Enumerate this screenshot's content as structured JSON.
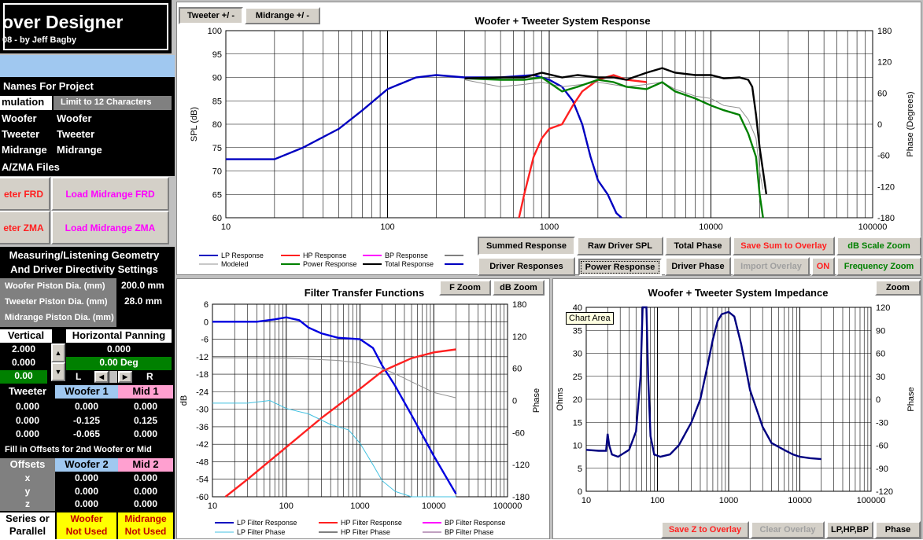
{
  "app": {
    "title": "over Designer",
    "subtitle": "08 - by Jeff Bagby"
  },
  "names": {
    "header": "Names For Project",
    "simulation_label": "mulation",
    "limit_note": "Limit to 12 Characters",
    "rows": [
      {
        "label": "Woofer",
        "value": "Woofer"
      },
      {
        "label": "Tweeter",
        "value": "Tweeter"
      },
      {
        "label": "Midrange",
        "value": "Midrange"
      }
    ]
  },
  "files": {
    "header": "A/ZMA Files",
    "tweeter_frd": "eter FRD",
    "midrange_frd": "Load Midrange FRD",
    "tweeter_zma": "eter ZMA",
    "midrange_zma": "Load Midrange ZMA"
  },
  "geometry": {
    "header1": "Measuring/Listening Geometry",
    "header2": "And Driver Directivity Settings",
    "rows": [
      {
        "label": "Woofer Piston Dia. (mm)",
        "value": "200.0 mm"
      },
      {
        "label": "Tweeter Piston Dia. (mm)",
        "value": "28.0 mm"
      },
      {
        "label": "Midrange Piston Dia. (mm)",
        "value": ""
      }
    ]
  },
  "panning": {
    "vertical_label": "Vertical",
    "horizontal_label": "Horizontal Panning",
    "vertical_values": [
      "2.000",
      "0.000",
      "0.00"
    ],
    "horizontal_value": "0.000",
    "deg_value": "0.00 Deg",
    "l": "L",
    "r": "R"
  },
  "offsets1": {
    "headers": [
      "Tweeter",
      "Woofer 1",
      "Mid 1"
    ],
    "rows": [
      [
        "0.000",
        "0.000",
        "0.000"
      ],
      [
        "0.000",
        "-0.125",
        "0.125"
      ],
      [
        "0.000",
        "-0.065",
        "0.000"
      ]
    ]
  },
  "offsets2": {
    "note": "Fill in Offsets for 2nd Woofer or Mid",
    "headers": [
      "Offsets",
      "Woofer 2",
      "Mid 2"
    ],
    "rows": [
      {
        "axis": "x",
        "w": "0.000",
        "m": "0.000"
      },
      {
        "axis": "y",
        "w": "0.000",
        "m": "0.000"
      },
      {
        "axis": "z",
        "w": "0.000",
        "m": "0.000"
      }
    ]
  },
  "series": {
    "label1": "Series or",
    "label2": "Parallel",
    "woofer1": "Woofer",
    "woofer2": "Not Used",
    "mid1": "Midrange",
    "mid2": "Not Used"
  },
  "tabs": {
    "tweeter": "Tweeter +/ -",
    "midrange": "Midrange   +/ -"
  },
  "buttons": {
    "summed": "Summed Response",
    "raw": "Raw Driver SPL",
    "total_phase": "Total Phase",
    "save_sum": "Save Sum to Overlay",
    "db_scale": "dB Scale Zoom",
    "driver_resp": "Driver Responses",
    "power_resp": "Power Response",
    "driver_phase": "Driver Phase",
    "import_overlay": "Import Overlay",
    "on": "ON",
    "freq_zoom": "Frequency Zoom",
    "f_zoom": "F Zoom",
    "db_zoom": "dB Zoom",
    "zoom": "Zoom",
    "save_z": "Save Z to Overlay",
    "clear_overlay": "Clear Overlay",
    "lphpbp": "LP,HP,BP",
    "phase": "Phase"
  },
  "tooltip": "Chart Area",
  "colors": {
    "lp": "#0000c0",
    "hp": "#ff2020",
    "bp": "#ff00ff",
    "power": "#008000",
    "total": "#000000",
    "modeled": "#909090",
    "lpphase": "#40c0e0",
    "imp": "#000080"
  },
  "chart_data": [
    {
      "type": "line",
      "title": "Woofer + Tweeter    System Response",
      "xlabel": "",
      "ylabel": "SPL (dB)",
      "y2label": "Phase (Degrees)",
      "xscale": "log",
      "xlim": [
        10,
        100000
      ],
      "ylim": [
        60,
        100
      ],
      "y2lim": [
        -180,
        180
      ],
      "xticks": [
        "10",
        "100",
        "1000",
        "10000",
        "100000"
      ],
      "yticks": [
        "60",
        "65",
        "70",
        "75",
        "80",
        "85",
        "90",
        "95",
        "100"
      ],
      "y2ticks": [
        "-180",
        "-120",
        "-60",
        "0",
        "60",
        "120",
        "180"
      ],
      "legend": [
        "LP Response",
        "HP Response",
        "BP Response",
        "",
        "Modeled",
        "Power Response",
        "Total Response",
        ""
      ],
      "series": [
        {
          "name": "LP Response",
          "color": "#0000c0",
          "points": [
            [
              10,
              72.5
            ],
            [
              20,
              72.5
            ],
            [
              30,
              75
            ],
            [
              50,
              79
            ],
            [
              70,
              83
            ],
            [
              100,
              87.5
            ],
            [
              150,
              90
            ],
            [
              200,
              90.5
            ],
            [
              300,
              90
            ],
            [
              500,
              90
            ],
            [
              800,
              90.5
            ],
            [
              1000,
              89.5
            ],
            [
              1200,
              88
            ],
            [
              1400,
              85
            ],
            [
              1600,
              80
            ],
            [
              1800,
              73
            ],
            [
              2000,
              68
            ],
            [
              2300,
              65
            ],
            [
              2600,
              61
            ],
            [
              2800,
              60
            ]
          ]
        },
        {
          "name": "HP Response",
          "color": "#ff2020",
          "points": [
            [
              650,
              60
            ],
            [
              700,
              65
            ],
            [
              800,
              73
            ],
            [
              900,
              77
            ],
            [
              1000,
              79
            ],
            [
              1200,
              80
            ],
            [
              1400,
              84
            ],
            [
              1600,
              87
            ],
            [
              2000,
              89.5
            ],
            [
              2500,
              90.5
            ],
            [
              3000,
              89.5
            ],
            [
              4000,
              89
            ]
          ]
        },
        {
          "name": "Modeled",
          "color": "#909090",
          "points": [
            [
              300,
              89.5
            ],
            [
              500,
              88
            ],
            [
              700,
              88.5
            ],
            [
              900,
              89
            ],
            [
              1200,
              88
            ],
            [
              1600,
              88.5
            ],
            [
              2000,
              89
            ],
            [
              3000,
              88
            ],
            [
              4000,
              88.5
            ],
            [
              5000,
              89
            ],
            [
              6000,
              87.5
            ],
            [
              8000,
              86
            ],
            [
              10000,
              85.5
            ],
            [
              12000,
              84
            ],
            [
              15000,
              83.5
            ],
            [
              17000,
              81
            ],
            [
              19000,
              77
            ],
            [
              20000,
              70
            ],
            [
              21000,
              66
            ]
          ]
        },
        {
          "name": "Power Response",
          "color": "#008000",
          "points": [
            [
              300,
              89.8
            ],
            [
              500,
              89.5
            ],
            [
              700,
              89.5
            ],
            [
              900,
              90
            ],
            [
              1200,
              87
            ],
            [
              1500,
              88
            ],
            [
              2000,
              89.5
            ],
            [
              2500,
              89
            ],
            [
              3000,
              88
            ],
            [
              4000,
              87.5
            ],
            [
              5000,
              89
            ],
            [
              6000,
              87
            ],
            [
              8000,
              85.5
            ],
            [
              10000,
              84
            ],
            [
              12000,
              83
            ],
            [
              15000,
              82
            ],
            [
              17000,
              78
            ],
            [
              19000,
              73
            ],
            [
              20000,
              65
            ],
            [
              21000,
              60
            ]
          ]
        },
        {
          "name": "Total Response",
          "color": "#000000",
          "points": [
            [
              300,
              89.8
            ],
            [
              500,
              90
            ],
            [
              700,
              90
            ],
            [
              900,
              91
            ],
            [
              1200,
              90
            ],
            [
              1500,
              90.5
            ],
            [
              2000,
              90
            ],
            [
              2500,
              90
            ],
            [
              3000,
              89.5
            ],
            [
              4000,
              91
            ],
            [
              5000,
              92
            ],
            [
              6000,
              91
            ],
            [
              8000,
              90.5
            ],
            [
              10000,
              90.5
            ],
            [
              12000,
              89.8
            ],
            [
              15000,
              90
            ],
            [
              17000,
              89.5
            ],
            [
              18000,
              88
            ],
            [
              19000,
              82
            ],
            [
              20000,
              75
            ],
            [
              21000,
              70
            ],
            [
              22000,
              65
            ]
          ]
        }
      ]
    },
    {
      "type": "line",
      "title": "Filter Transfer Functions",
      "xlabel": "",
      "ylabel": "dB",
      "y2label": "Phase",
      "xscale": "log",
      "xlim": [
        10,
        100000
      ],
      "ylim": [
        -60,
        6
      ],
      "y2lim": [
        -180,
        180
      ],
      "xticks": [
        "10",
        "100",
        "1000",
        "10000",
        "100000"
      ],
      "yticks": [
        "-60",
        "-54",
        "-48",
        "-42",
        "-36",
        "-30",
        "-24",
        "-18",
        "-12",
        "-6",
        "0",
        "6"
      ],
      "y2ticks": [
        "-180",
        "-120",
        "-60",
        "0",
        "60",
        "120",
        "180"
      ],
      "legend": [
        "LP Filter Response",
        "HP Filter Response",
        "BP Filter Response",
        "LP Filter Phase",
        "HP Filter Phase",
        "BP Filter Phase"
      ],
      "series": [
        {
          "name": "LP Filter Response",
          "color": "#0000e0",
          "axis": "y",
          "points": [
            [
              10,
              0
            ],
            [
              40,
              0
            ],
            [
              70,
              0.8
            ],
            [
              100,
              1.5
            ],
            [
              150,
              0.5
            ],
            [
              200,
              -2
            ],
            [
              300,
              -4
            ],
            [
              500,
              -5.5
            ],
            [
              1000,
              -6
            ],
            [
              1500,
              -9
            ],
            [
              2000,
              -15
            ],
            [
              3000,
              -22
            ],
            [
              5000,
              -32
            ],
            [
              10000,
              -46
            ],
            [
              20000,
              -59
            ]
          ]
        },
        {
          "name": "HP Filter Response",
          "color": "#ff2020",
          "axis": "y",
          "points": [
            [
              15,
              -60
            ],
            [
              30,
              -54
            ],
            [
              100,
              -43
            ],
            [
              300,
              -33
            ],
            [
              1000,
              -23
            ],
            [
              2000,
              -17
            ],
            [
              3000,
              -15
            ],
            [
              5000,
              -12.5
            ],
            [
              10000,
              -10.5
            ],
            [
              20000,
              -9.5
            ]
          ]
        },
        {
          "name": "LP Filter Phase",
          "color": "#40c0e0",
          "axis": "y2",
          "points": [
            [
              10,
              -5
            ],
            [
              30,
              -5
            ],
            [
              60,
              0
            ],
            [
              100,
              -15
            ],
            [
              200,
              -25
            ],
            [
              400,
              -45
            ],
            [
              700,
              -55
            ],
            [
              1000,
              -80
            ],
            [
              1500,
              -120
            ],
            [
              2000,
              -150
            ],
            [
              3000,
              -170
            ],
            [
              5000,
              -180
            ],
            [
              20000,
              -180
            ]
          ]
        },
        {
          "name": "HP Filter Phase",
          "color": "#909090",
          "axis": "y2",
          "points": [
            [
              10,
              80
            ],
            [
              100,
              79
            ],
            [
              500,
              75
            ],
            [
              1000,
              70
            ],
            [
              2000,
              60
            ],
            [
              3000,
              50
            ],
            [
              5000,
              35
            ],
            [
              10000,
              15
            ],
            [
              20000,
              5
            ]
          ]
        }
      ]
    },
    {
      "type": "line",
      "title": "Woofer + Tweeter     System Impedance",
      "xlabel": "",
      "ylabel": "Ohms",
      "y2label": "Phase",
      "xscale": "log",
      "xlim": [
        10,
        100000
      ],
      "ylim": [
        0,
        40
      ],
      "y2lim": [
        -120,
        120
      ],
      "xticks": [
        "10",
        "100",
        "1000",
        "10000",
        "100000"
      ],
      "yticks": [
        "0",
        "5",
        "10",
        "15",
        "20",
        "25",
        "30",
        "35",
        "40"
      ],
      "y2ticks": [
        "-120",
        "-90",
        "-60",
        "-30",
        "0",
        "30",
        "60",
        "90",
        "120"
      ],
      "series": [
        {
          "name": "Impedance",
          "color": "#000080",
          "points": [
            [
              10,
              9
            ],
            [
              15,
              8.8
            ],
            [
              19,
              8.8
            ],
            [
              20,
              12.5
            ],
            [
              21,
              10
            ],
            [
              23,
              8
            ],
            [
              28,
              7.5
            ],
            [
              40,
              9
            ],
            [
              50,
              13
            ],
            [
              58,
              25
            ],
            [
              62,
              40
            ],
            [
              70,
              40
            ],
            [
              74,
              25
            ],
            [
              80,
              12
            ],
            [
              90,
              8
            ],
            [
              110,
              7.5
            ],
            [
              150,
              8
            ],
            [
              200,
              10
            ],
            [
              300,
              15
            ],
            [
              400,
              20
            ],
            [
              500,
              27
            ],
            [
              600,
              33
            ],
            [
              700,
              37
            ],
            [
              800,
              38.5
            ],
            [
              1000,
              39
            ],
            [
              1200,
              38
            ],
            [
              1500,
              32
            ],
            [
              2000,
              22
            ],
            [
              3000,
              14
            ],
            [
              4000,
              10.5
            ],
            [
              6000,
              9
            ],
            [
              8000,
              8
            ],
            [
              10000,
              7.5
            ],
            [
              14000,
              7.2
            ],
            [
              20000,
              7
            ]
          ]
        }
      ]
    }
  ]
}
